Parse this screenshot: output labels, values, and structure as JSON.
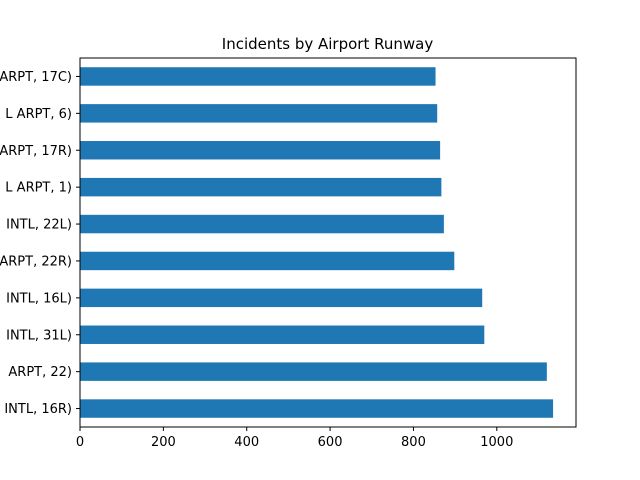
{
  "chart_data": {
    "type": "bar",
    "orientation": "horizontal",
    "title": "Incidents by Airport Runway",
    "xlabel": "",
    "ylabel": "",
    "xlim": [
      0,
      1190
    ],
    "x_ticks": [
      0,
      200,
      400,
      600,
      800,
      1000
    ],
    "grid": false,
    "legend": "none",
    "bar_color": "#1f77b4",
    "categories": [
      "INTL, 16R)",
      "ARPT, 22)",
      "INTL, 31L)",
      "INTL, 16L)",
      "ARPT, 22R)",
      "INTL, 22L)",
      "L ARPT, 1)",
      "ARPT, 17R)",
      "L ARPT, 6)",
      "ARPT, 17C)"
    ],
    "values": [
      1135,
      1120,
      970,
      965,
      898,
      873,
      867,
      864,
      857,
      853
    ]
  }
}
